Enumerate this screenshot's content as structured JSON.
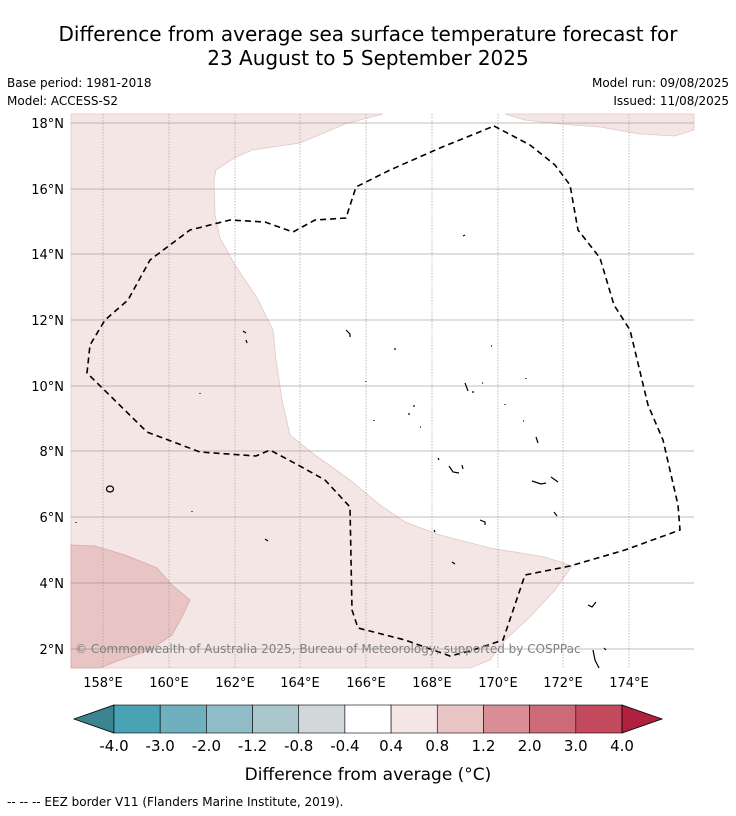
{
  "title_line1": "Difference from average sea surface temperature forecast for",
  "title_line2": "23 August to 5 September 2025",
  "base_period": "Base period: 1981-2018",
  "model": "Model: ACCESS-S2",
  "model_run": "Model run: 09/08/2025",
  "issued": "Issued: 11/08/2025",
  "credit": "© Commonwealth of Australia 2025, Bureau of Meteorology; supported by COSPPac",
  "lat_labels": [
    "18°N",
    "16°N",
    "14°N",
    "12°N",
    "10°N",
    "8°N",
    "6°N",
    "4°N",
    "2°N"
  ],
  "lon_labels": [
    "158°E",
    "160°E",
    "162°E",
    "164°E",
    "166°E",
    "168°E",
    "170°E",
    "172°E",
    "174°E"
  ],
  "colorbar": {
    "title": "Difference from average (°C)",
    "tick_labels": [
      "-4.0",
      "-3.0",
      "-2.0",
      "-1.2",
      "-0.8",
      "-0.4",
      "0.4",
      "0.8",
      "1.2",
      "2.0",
      "3.0",
      "4.0"
    ],
    "colors": [
      "#4aa3b4",
      "#6fb0bf",
      "#8fbcc6",
      "#aac8cc",
      "#d2d8da",
      "#ffffff",
      "#f5e6e6",
      "#e9c4c4",
      "#da8e97",
      "#cd6a77",
      "#c24a5c"
    ],
    "under_color": "#3b8591",
    "over_color": "#b0203f"
  },
  "footnote": "--  --  -- EEZ border V11 (Flanders Marine Institute, 2019)."
}
